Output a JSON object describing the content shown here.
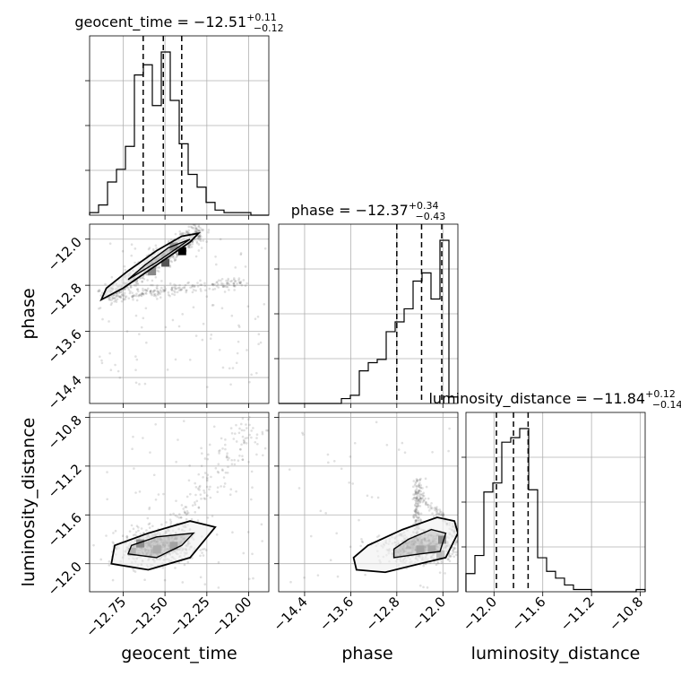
{
  "chart_data": {
    "type": "corner",
    "parameters": [
      "geocent_time",
      "phase",
      "luminosity_distance"
    ],
    "axis_labels": {
      "geocent_time": "geocent_time",
      "phase": "phase",
      "luminosity_distance": "luminosity_distance"
    },
    "titles": {
      "geocent_time": {
        "name": "geocent_time",
        "median": "−12.51",
        "upper": "+0.11",
        "lower": "−0.12"
      },
      "phase": {
        "name": "phase",
        "median": "−12.37",
        "upper": "+0.34",
        "lower": "−0.43"
      },
      "luminosity_distance": {
        "name": "luminosity_distance",
        "median": "−11.84",
        "upper": "+0.12",
        "lower": "−0.14"
      }
    },
    "ranges": {
      "geocent_time": [
        -12.95,
        -11.88
      ],
      "phase": [
        -14.85,
        -11.74
      ],
      "luminosity_distance": [
        -12.23,
        -10.76
      ]
    },
    "ticks": {
      "geocent_time": {
        "values": [
          -12.75,
          -12.5,
          -12.25,
          -12.0
        ],
        "labels": [
          "−12.75",
          "−12.50",
          "−12.25",
          "−12.00"
        ]
      },
      "phase": {
        "values": [
          -14.4,
          -13.6,
          -12.8,
          -12.0
        ],
        "labels": [
          "−14.4",
          "−13.6",
          "−12.8",
          "−12.0"
        ]
      },
      "luminosity_distance": {
        "values": [
          -12.0,
          -11.6,
          -11.2,
          -10.8
        ],
        "labels": [
          "−12.0",
          "−11.6",
          "−11.2",
          "−10.8"
        ]
      }
    },
    "y_ticks": {
      "phase": {
        "values": [
          -14.4,
          -13.6,
          -12.8,
          -12.0
        ],
        "labels": [
          "−14.4",
          "−13.6",
          "−12.8",
          "−12.0"
        ]
      },
      "luminosity_distance": {
        "values": [
          -12.0,
          -11.6,
          -11.2,
          -10.8
        ],
        "labels": [
          "−12.0",
          "−11.6",
          "−11.2",
          "−10.8"
        ]
      }
    },
    "histograms": {
      "geocent_time": {
        "bins": 20,
        "counts": [
          1,
          4,
          13,
          18,
          27,
          55,
          59,
          43,
          64,
          45,
          28,
          16,
          11,
          5,
          2,
          1,
          1,
          1,
          0,
          0
        ],
        "quantiles": [
          -12.63,
          -12.51,
          -12.4
        ]
      },
      "phase": {
        "bins": 20,
        "counts": [
          0,
          0,
          0,
          0,
          0,
          0,
          0,
          3,
          5,
          20,
          25,
          27,
          44,
          50,
          58,
          75,
          80,
          64,
          100,
          4
        ],
        "quantiles": [
          -12.8,
          -12.37,
          -12.02
        ]
      },
      "luminosity_distance": {
        "bins": 20,
        "counts": [
          8,
          16,
          44,
          48,
          66,
          68,
          72,
          45,
          15,
          9,
          6,
          3,
          1,
          1,
          0,
          0,
          0,
          0,
          0,
          1
        ],
        "quantiles": [
          -11.98,
          -11.84,
          -11.72
        ]
      }
    },
    "grid": true
  }
}
